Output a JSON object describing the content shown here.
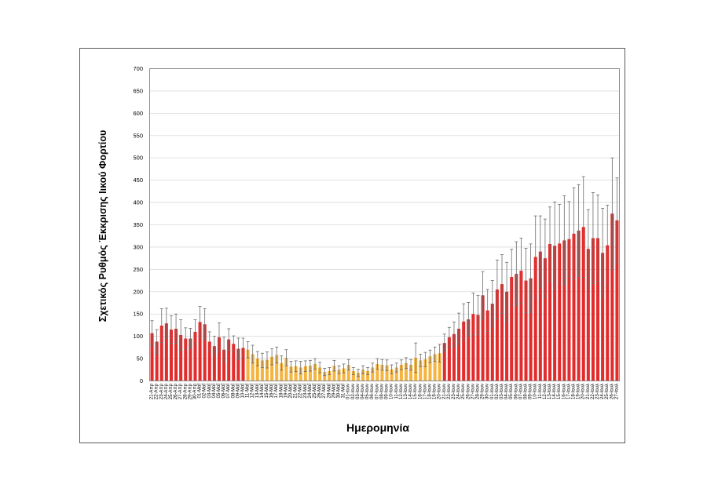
{
  "chart_data": {
    "type": "bar",
    "xlabel": "Ημερομηνία",
    "ylabel": "Σχετικός Ρυθμός Έκκρισης Ιικού Φορτίου",
    "ylim": [
      0,
      700
    ],
    "yticks": [
      0,
      50,
      100,
      150,
      200,
      250,
      300,
      350,
      400,
      450,
      500,
      550,
      600,
      650,
      700
    ],
    "grid": true,
    "legend": "none",
    "error_bars": true,
    "categories": [
      "21-Απρ",
      "22-Απρ",
      "23-Απρ",
      "24-Απρ",
      "25-Απρ",
      "26-Απρ",
      "27-Απρ",
      "28-Απρ",
      "29-Απρ",
      "30-Απρ",
      "01-Μαΐ",
      "02-Μαΐ",
      "03-Μαΐ",
      "04-Μαΐ",
      "05-Μαΐ",
      "06-Μαΐ",
      "07-Μαΐ",
      "08-Μαΐ",
      "09-Μαΐ",
      "10-Μαΐ",
      "11-Μαΐ",
      "12-Μαΐ",
      "13-Μαΐ",
      "14-Μαΐ",
      "15-Μαΐ",
      "16-Μαΐ",
      "17-Μαΐ",
      "18-Μαΐ",
      "19-Μαΐ",
      "20-Μαΐ",
      "21-Μαΐ",
      "22-Μαΐ",
      "23-Μαΐ",
      "24-Μαΐ",
      "25-Μαΐ",
      "26-Μαΐ",
      "27-Μαΐ",
      "28-Μαΐ",
      "29-Μαΐ",
      "30-Μαΐ",
      "31-Μαΐ",
      "01-Ιουν",
      "02-Ιουν",
      "03-Ιουν",
      "04-Ιουν",
      "05-Ιουν",
      "06-Ιουν",
      "07-Ιουν",
      "08-Ιουν",
      "09-Ιουν",
      "10-Ιουν",
      "11-Ιουν",
      "12-Ιουν",
      "13-Ιουν",
      "14-Ιουν",
      "15-Ιουν",
      "16-Ιουν",
      "17-Ιουν",
      "18-Ιουν",
      "19-Ιουν",
      "20-Ιουν",
      "21-Ιουν",
      "22-Ιουν",
      "23-Ιουν",
      "24-Ιουν",
      "25-Ιουν",
      "26-Ιουν",
      "27-Ιουν",
      "28-Ιουν",
      "29-Ιουν",
      "30-Ιουν",
      "01-Ιουλ",
      "02-Ιουλ",
      "03-Ιουλ",
      "04-Ιουλ",
      "05-Ιουλ",
      "06-Ιουλ",
      "07-Ιουλ",
      "08-Ιουλ",
      "09-Ιουλ",
      "10-Ιουλ",
      "11-Ιουλ",
      "12-Ιουλ",
      "13-Ιουλ",
      "14-Ιουλ",
      "15-Ιουλ",
      "16-Ιουλ",
      "17-Ιουλ",
      "18-Ιουλ",
      "19-Ιουλ",
      "20-Ιουλ",
      "21-Ιουλ",
      "22-Ιουλ",
      "23-Ιουλ",
      "24-Ιουλ",
      "25-Ιουλ",
      "26-Ιουλ",
      "27-Ιουλ"
    ],
    "values": [
      107,
      88,
      124,
      129,
      115,
      117,
      103,
      95,
      95,
      110,
      132,
      127,
      88,
      78,
      98,
      70,
      93,
      83,
      72,
      74,
      70,
      60,
      50,
      46,
      47,
      54,
      58,
      40,
      52,
      32,
      33,
      30,
      33,
      34,
      38,
      30,
      20,
      22,
      34,
      25,
      28,
      36,
      22,
      18,
      25,
      22,
      30,
      38,
      36,
      35,
      26,
      30,
      36,
      40,
      36,
      52,
      46,
      48,
      55,
      60,
      62,
      85,
      98,
      105,
      117,
      133,
      138,
      150,
      148,
      192,
      158,
      173,
      205,
      217,
      200,
      233,
      240,
      247,
      225,
      230,
      278,
      290,
      275,
      307,
      303,
      308,
      315,
      318,
      330,
      337,
      345,
      296,
      320,
      320,
      287,
      304,
      375,
      360
    ],
    "error": [
      28,
      27,
      38,
      34,
      31,
      33,
      34,
      24,
      23,
      27,
      35,
      35,
      22,
      22,
      32,
      28,
      24,
      18,
      24,
      22,
      18,
      20,
      16,
      16,
      18,
      18,
      18,
      16,
      18,
      12,
      12,
      14,
      12,
      12,
      12,
      12,
      8,
      8,
      12,
      9,
      10,
      12,
      8,
      8,
      9,
      8,
      10,
      12,
      12,
      12,
      10,
      10,
      11,
      12,
      12,
      33,
      14,
      16,
      14,
      16,
      20,
      20,
      22,
      27,
      35,
      40,
      38,
      47,
      44,
      53,
      47,
      52,
      66,
      66,
      66,
      62,
      72,
      73,
      72,
      77,
      92,
      80,
      88,
      83,
      98,
      88,
      100,
      84,
      103,
      103,
      113,
      88,
      102,
      97,
      100,
      90,
      125,
      95
    ],
    "segments": [
      {
        "from": "21-Απρ",
        "to": "10-Μαΐ",
        "color": "#E22B2B"
      },
      {
        "from": "11-Μαΐ",
        "to": "20-Ιουν",
        "color": "#F4B43F"
      },
      {
        "from": "21-Ιουν",
        "to": "27-Ιουλ",
        "color": "#E22B2B"
      }
    ],
    "colors": {
      "gridline": "#D9D9D9",
      "error_bar": "#6B6B6B",
      "plot_border": "#8C8C8C",
      "frame": "#595959"
    }
  }
}
